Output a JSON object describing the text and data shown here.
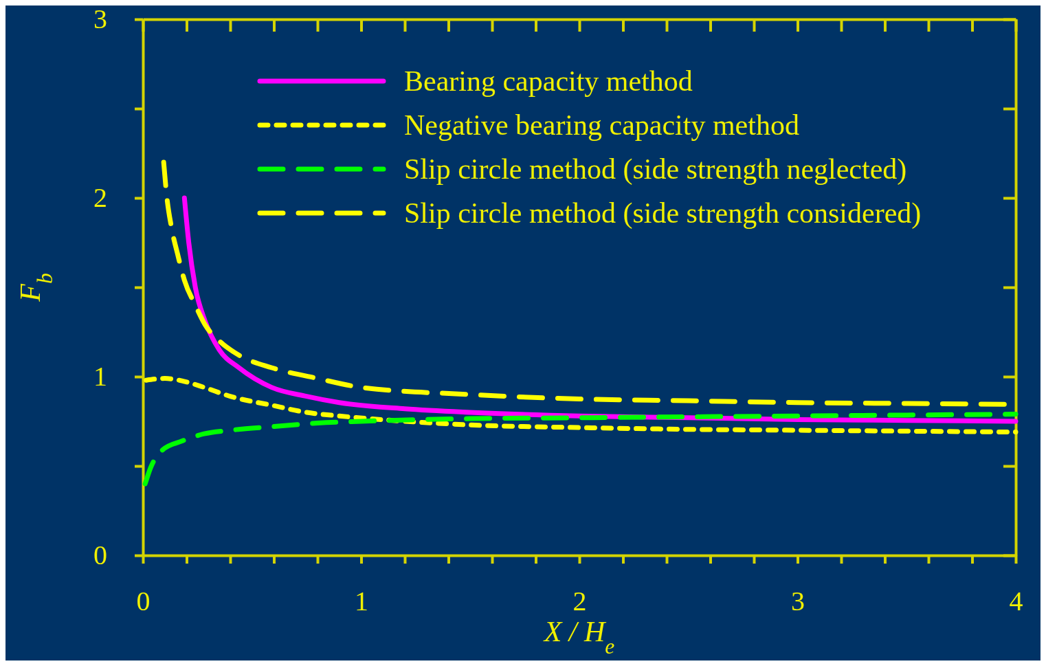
{
  "chart_data": {
    "type": "line",
    "xlabel": "X / H$_{e}$",
    "ylabel": "F$_{b}$",
    "xlim": [
      0,
      4
    ],
    "ylim": [
      0,
      3
    ],
    "xticks": [
      0,
      {
        "value": 0.2,
        "label": null
      },
      {
        "value": 0.4,
        "label": null
      },
      {
        "value": 0.6,
        "label": null
      },
      {
        "value": 0.8,
        "label": null
      },
      1,
      {
        "value": 1.2,
        "label": null
      },
      {
        "value": 1.4,
        "label": null
      },
      {
        "value": 1.6,
        "label": null
      },
      {
        "value": 1.8,
        "label": null
      },
      2,
      {
        "value": 2.2,
        "label": null
      },
      {
        "value": 2.4,
        "label": null
      },
      {
        "value": 2.6,
        "label": null
      },
      {
        "value": 2.8,
        "label": null
      },
      3,
      {
        "value": 3.2,
        "label": null
      },
      {
        "value": 3.4,
        "label": null
      },
      {
        "value": 3.6,
        "label": null
      },
      {
        "value": 3.8,
        "label": null
      },
      4
    ],
    "yticks": [
      0,
      {
        "value": 0.5,
        "label": null
      },
      1,
      {
        "value": 1.5,
        "label": null
      },
      2,
      {
        "value": 2.5,
        "label": null
      },
      3
    ],
    "grid": false,
    "legend": "top right",
    "series": [
      {
        "name": "Bearing capacity method",
        "color": "#ff00ff",
        "line_style": "solid",
        "x": [
          0.19,
          0.21,
          0.24,
          0.285,
          0.35,
          0.44,
          0.59,
          0.75,
          0.9,
          1.2,
          1.5,
          2,
          2.5,
          3,
          3.5,
          4
        ],
        "values": [
          2.0,
          1.75,
          1.5,
          1.31,
          1.15,
          1.05,
          0.94,
          0.89,
          0.855,
          0.82,
          0.8,
          0.78,
          0.77,
          0.76,
          0.755,
          0.75
        ]
      },
      {
        "name": "Negative bearing capacity method",
        "color": "#ffff00",
        "line_style": "dotted",
        "x": [
          0.015,
          0.1,
          0.2,
          0.28,
          0.4,
          0.59,
          0.75,
          0.9,
          1.2,
          1.5,
          2,
          2.5,
          3,
          3.5,
          4
        ],
        "values": [
          0.98,
          0.99,
          0.97,
          0.94,
          0.89,
          0.84,
          0.8,
          0.78,
          0.75,
          0.73,
          0.715,
          0.705,
          0.7,
          0.695,
          0.69
        ]
      },
      {
        "name": "Slip circle method (side strength neglected)",
        "color": "#00ff00",
        "line_style": "dashed",
        "x": [
          0.01,
          0.035,
          0.09,
          0.18,
          0.28,
          0.4,
          0.59,
          0.8,
          1,
          1.5,
          2,
          2.5,
          3,
          3.5,
          4
        ],
        "values": [
          0.4,
          0.49,
          0.59,
          0.64,
          0.68,
          0.7,
          0.72,
          0.74,
          0.75,
          0.765,
          0.77,
          0.775,
          0.78,
          0.785,
          0.79
        ]
      },
      {
        "name": "Slip circle method (side strength considered)",
        "color": "#ffff00",
        "line_style": "dashed",
        "x": [
          0.095,
          0.11,
          0.13,
          0.16,
          0.19,
          0.24,
          0.285,
          0.35,
          0.44,
          0.59,
          0.8,
          1,
          1.5,
          2,
          2.5,
          3,
          3.5,
          4
        ],
        "values": [
          2.2,
          2.0,
          1.84,
          1.68,
          1.54,
          1.4,
          1.29,
          1.2,
          1.12,
          1.05,
          0.99,
          0.94,
          0.9,
          0.875,
          0.865,
          0.855,
          0.85,
          0.845
        ]
      }
    ]
  }
}
